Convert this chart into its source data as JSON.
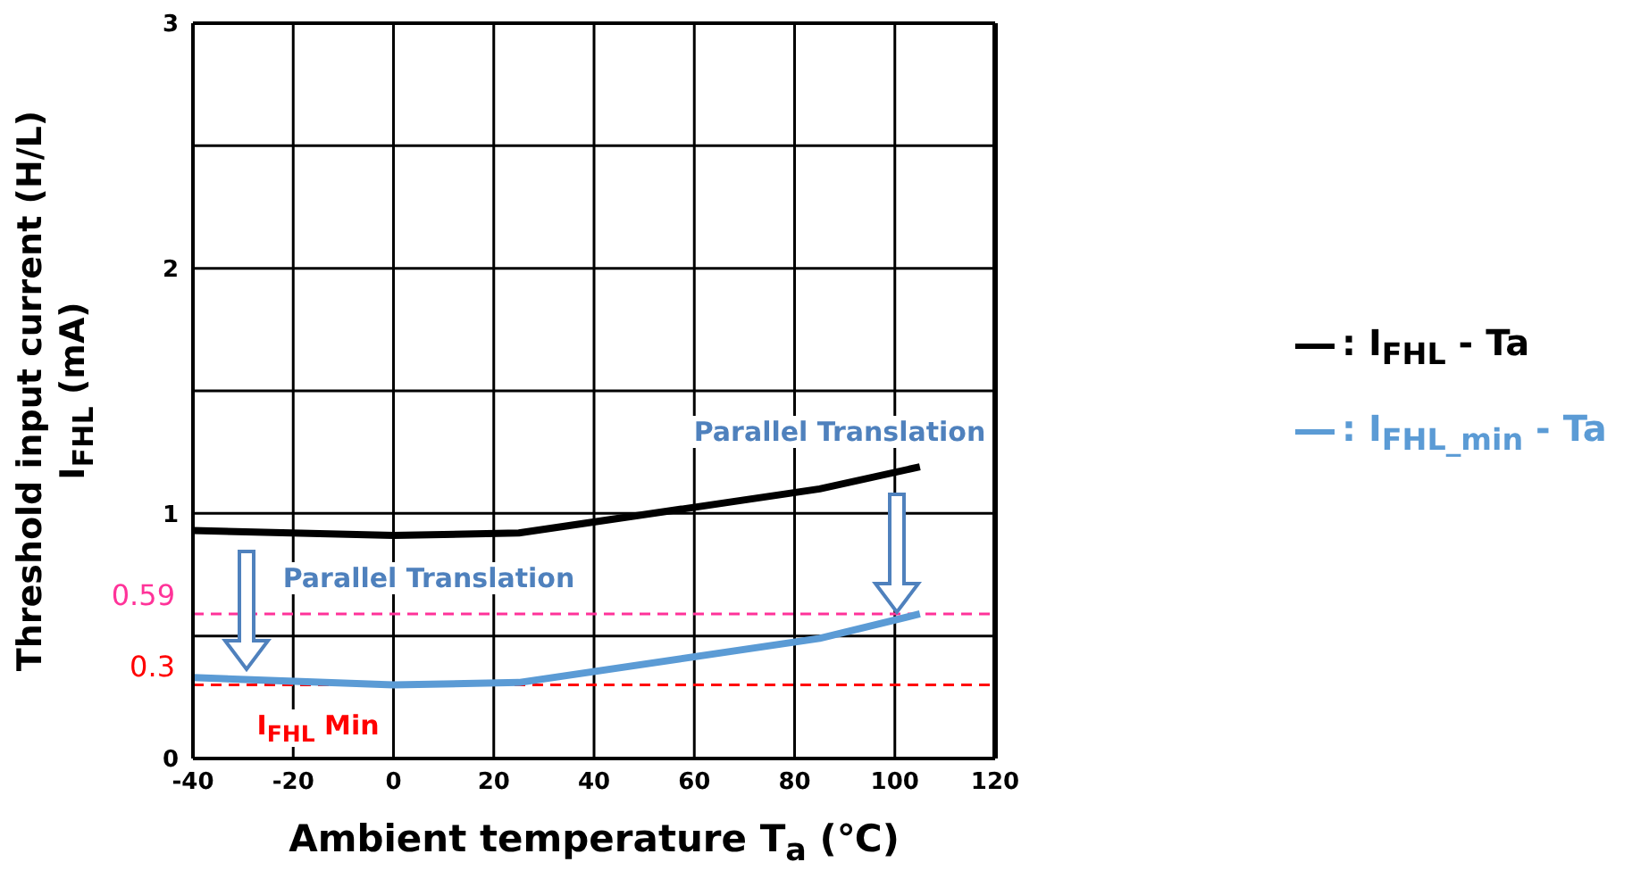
{
  "chart_data": {
    "type": "line",
    "ylabel": "Threshold input current (H/L)\nI$_{FHL}$  (mA)",
    "xlabel": "Ambient temperature  T$_{a}$  (℃)",
    "x": [
      -40,
      0,
      25,
      85,
      105
    ],
    "series": [
      {
        "name": ": I$_{FHL}$ - Ta",
        "color": "#000000",
        "values": [
          0.93,
          0.91,
          0.92,
          1.1,
          1.19
        ]
      },
      {
        "name": ": I$_{FHL_min}$ - Ta",
        "color": "#5b9bd5",
        "values": [
          0.33,
          0.3,
          0.31,
          0.49,
          0.59
        ]
      }
    ],
    "xlim": [
      -40,
      120
    ],
    "xticks": [
      -40,
      -20,
      0,
      20,
      40,
      60,
      80,
      100,
      120
    ],
    "ylim": [
      0,
      3
    ],
    "yticks": [
      0,
      {
        "value": 0.5,
        "label": null
      },
      1,
      {
        "value": 1.5,
        "label": null
      },
      2,
      {
        "value": 2.5,
        "label": null
      },
      3
    ],
    "grid": true,
    "legend": "right",
    "marker": "none",
    "line_style": "solid",
    "ref_lines": [
      {
        "axis": "y",
        "value": 0.59,
        "label": "0.59",
        "color": "#ff3399",
        "line_style": "dashed"
      },
      {
        "axis": "y",
        "value": 0.3,
        "label": "0.3",
        "color": "#ff0000",
        "line_style": "dashed"
      }
    ],
    "annotations": [
      "Parallel Translation",
      "Parallel Translation",
      "I$_{FHL}$ Min"
    ]
  }
}
